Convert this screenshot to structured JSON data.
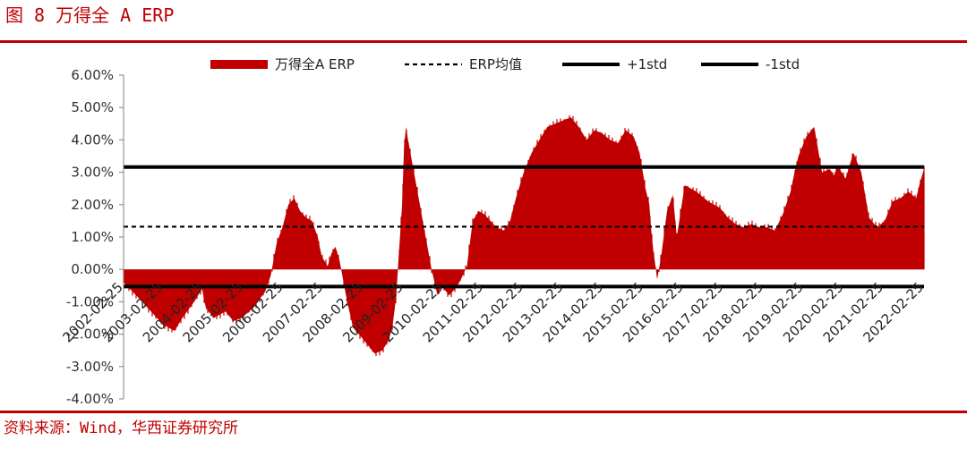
{
  "figure": {
    "title": "图 8  万得全 A ERP",
    "source": "资料来源：Wind，华西证券研究所"
  },
  "chart_data": {
    "type": "area",
    "title": "",
    "xlabel": "",
    "ylabel": "",
    "ylim": [
      -0.04,
      0.06
    ],
    "yticks": [
      "6.00%",
      "5.00%",
      "4.00%",
      "3.00%",
      "2.00%",
      "1.00%",
      "0.00%",
      "-1.00%",
      "-2.00%",
      "-3.00%",
      "-4.00%"
    ],
    "xticks": [
      "2002-02-25",
      "2003-02-25",
      "2004-02-25",
      "2005-02-25",
      "2006-02-25",
      "2007-02-25",
      "2008-02-25",
      "2009-02-25",
      "2010-02-25",
      "2011-02-25",
      "2012-02-25",
      "2013-02-25",
      "2014-02-25",
      "2015-02-25",
      "2016-02-25",
      "2017-02-25",
      "2018-02-25",
      "2019-02-25",
      "2020-02-25",
      "2021-02-25",
      "2022-02-25"
    ],
    "grid": false,
    "legend_position": "top",
    "colors": {
      "area": "#c00000",
      "lines": "#000000",
      "axis": "#808080"
    },
    "series": [
      {
        "name": "万得全A ERP",
        "style": "area",
        "x": [
          2002.0,
          2002.4,
          2002.7,
          2003.0,
          2003.3,
          2003.5,
          2003.8,
          2004.0,
          2004.1,
          2004.3,
          2004.6,
          2004.8,
          2005.0,
          2005.3,
          2005.6,
          2005.75,
          2005.9,
          2006.05,
          2006.2,
          2006.35,
          2006.5,
          2006.65,
          2006.8,
          2006.95,
          2007.05,
          2007.2,
          2007.3,
          2007.4,
          2007.5,
          2007.7,
          2007.85,
          2008.0,
          2008.2,
          2008.4,
          2008.6,
          2008.75,
          2008.85,
          2008.95,
          2009.0,
          2009.1,
          2009.15,
          2009.2,
          2009.25,
          2009.4,
          2009.55,
          2009.7,
          2009.85,
          2010.0,
          2010.1,
          2010.3,
          2010.45,
          2010.6,
          2010.75,
          2010.9,
          2011.05,
          2011.2,
          2011.35,
          2011.5,
          2011.7,
          2011.85,
          2012.0,
          2012.2,
          2012.4,
          2012.6,
          2012.8,
          2013.0,
          2013.2,
          2013.4,
          2013.6,
          2013.8,
          2014.0,
          2014.2,
          2014.4,
          2014.6,
          2014.8,
          2015.0,
          2015.15,
          2015.3,
          2015.4,
          2015.45,
          2015.5,
          2015.6,
          2015.7,
          2015.85,
          2016.0,
          2016.1,
          2016.3,
          2016.6,
          2016.9,
          2017.2,
          2017.4,
          2017.6,
          2017.8,
          2018.0,
          2018.2,
          2018.4,
          2018.6,
          2018.8,
          2019.0,
          2019.1,
          2019.2,
          2019.4,
          2019.6,
          2019.8,
          2020.0,
          2020.1,
          2020.2,
          2020.4,
          2020.6,
          2020.8,
          2021.0,
          2021.2,
          2021.4,
          2021.6,
          2021.8,
          2022.0,
          2022.2,
          2022.3,
          2022.4
        ],
        "values": [
          -0.004,
          -0.009,
          -0.013,
          -0.017,
          -0.019,
          -0.015,
          -0.01,
          -0.006,
          -0.012,
          -0.015,
          -0.013,
          -0.016,
          -0.015,
          -0.012,
          -0.007,
          -0.002,
          0.008,
          0.013,
          0.02,
          0.022,
          0.018,
          0.016,
          0.015,
          0.01,
          0.004,
          0.001,
          0.005,
          0.007,
          0.003,
          -0.01,
          -0.018,
          -0.02,
          -0.023,
          -0.026,
          -0.025,
          -0.022,
          -0.018,
          -0.008,
          0.002,
          0.02,
          0.038,
          0.044,
          0.04,
          0.03,
          0.02,
          0.01,
          0.0,
          -0.008,
          -0.005,
          -0.008,
          -0.006,
          -0.003,
          0.001,
          0.015,
          0.018,
          0.017,
          0.015,
          0.013,
          0.012,
          0.015,
          0.022,
          0.03,
          0.036,
          0.04,
          0.044,
          0.045,
          0.046,
          0.047,
          0.044,
          0.04,
          0.043,
          0.042,
          0.04,
          0.039,
          0.043,
          0.041,
          0.036,
          0.025,
          0.02,
          0.012,
          0.006,
          -0.003,
          0.004,
          0.018,
          0.023,
          0.01,
          0.026,
          0.024,
          0.021,
          0.019,
          0.016,
          0.014,
          0.013,
          0.014,
          0.013,
          0.013,
          0.012,
          0.017,
          0.024,
          0.03,
          0.035,
          0.041,
          0.044,
          0.03,
          0.031,
          0.029,
          0.032,
          0.028,
          0.036,
          0.03,
          0.016,
          0.013,
          0.015,
          0.021,
          0.022,
          0.024,
          0.022,
          0.027,
          0.031
        ]
      },
      {
        "name": "ERP均值",
        "style": "dashed",
        "value": 0.0132
      },
      {
        "name": "+1std",
        "style": "solid",
        "value": 0.0316
      },
      {
        "name": "-1std",
        "style": "solid",
        "value": -0.0053
      }
    ]
  }
}
